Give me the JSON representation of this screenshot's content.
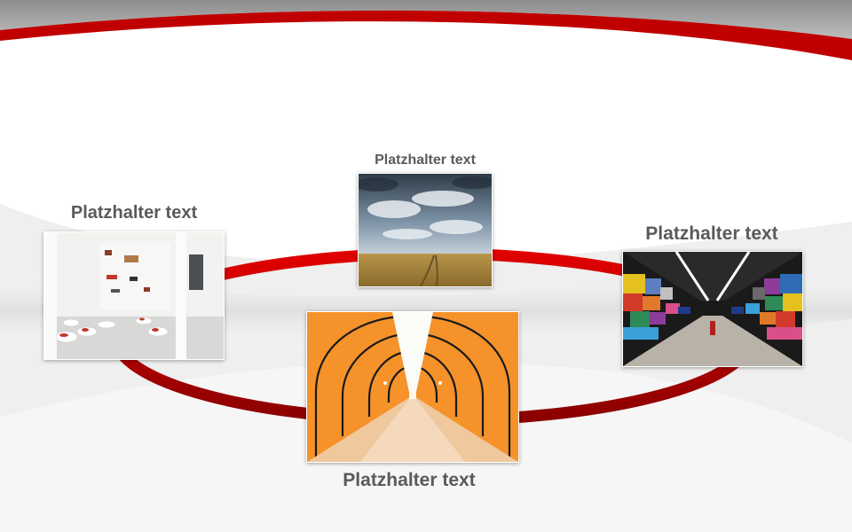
{
  "slide": {
    "colors": {
      "accent_red": "#c00000",
      "header_gray": "#9a9a9a",
      "caption_gray": "#5a5a5a"
    },
    "items": [
      {
        "id": "left",
        "caption": "Platzhalter text",
        "image": "museum-gallery-image"
      },
      {
        "id": "top",
        "caption": "Platzhalter text",
        "image": "stormy-sky-wheat-field-image"
      },
      {
        "id": "right",
        "caption": "Platzhalter text",
        "image": "colorful-subway-station-image"
      },
      {
        "id": "bottom",
        "caption": "Platzhalter text",
        "image": "orange-tunnel-image"
      }
    ]
  }
}
